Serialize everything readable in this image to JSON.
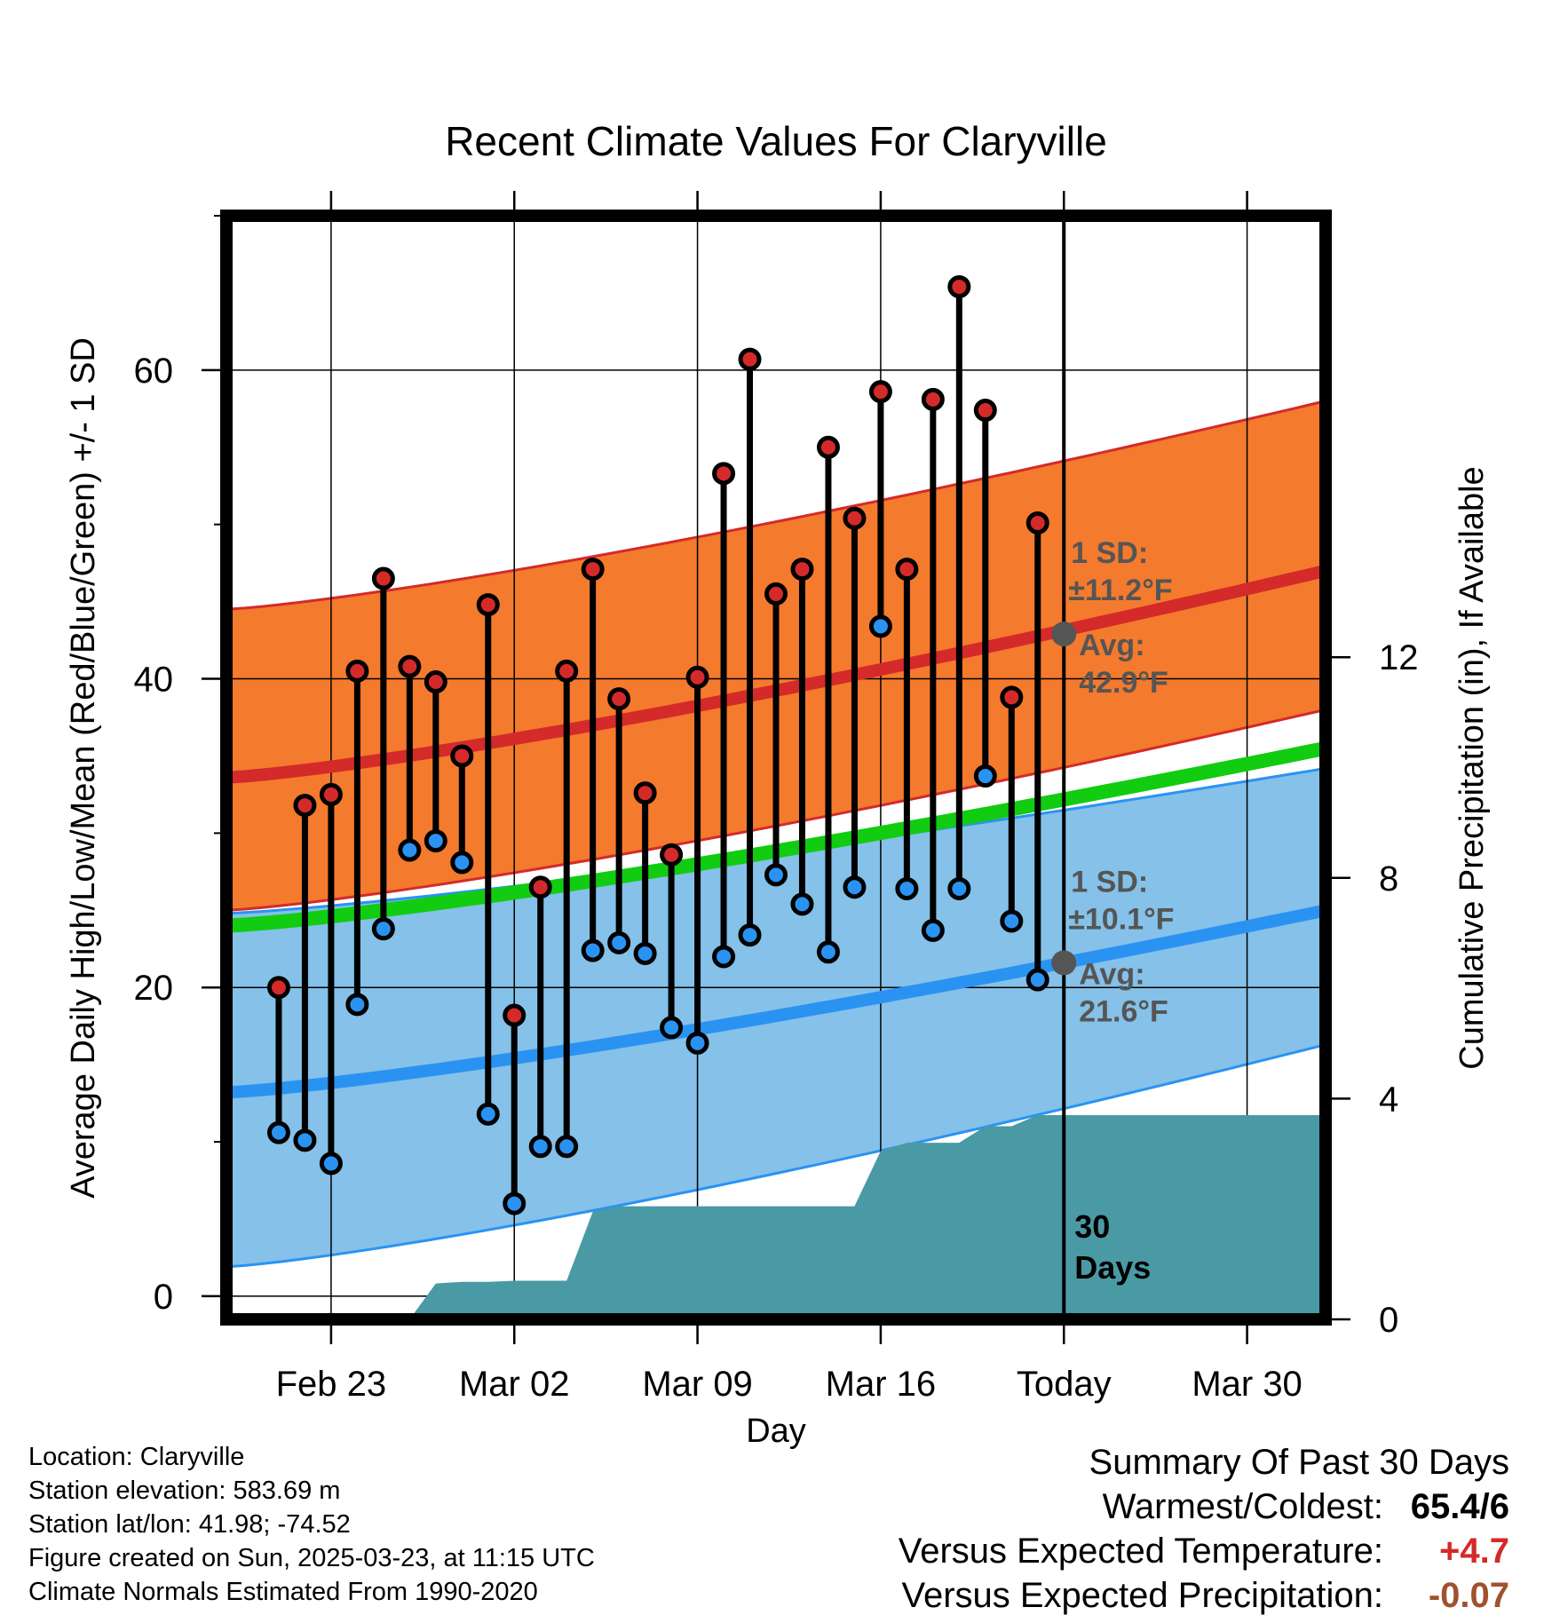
{
  "chart_data": {
    "type": "line",
    "title": "Recent Climate Values For Claryville",
    "xlabel": "Day",
    "ylabel": "Average Daily High/Low/Mean (Red/Blue/Green) +/- 1 SD",
    "y2label": "Cumulative Precipitation (in), If Available",
    "x_tick_labels": [
      "Feb 23",
      "Mar 02",
      "Mar 09",
      "Mar 16",
      "Today",
      "Mar 30"
    ],
    "y_ticks": [
      0,
      20,
      40,
      60
    ],
    "y2_ticks": [
      0,
      4,
      8,
      12
    ],
    "ylim": [
      -1.5,
      70
    ],
    "y2lim": [
      0,
      20
    ],
    "xlim": [
      "2025-02-19",
      "2025-04-02"
    ],
    "today": "2025-03-23",
    "days_marker_label": "30\nDays",
    "grid": true,
    "daily_observations": {
      "dates": [
        "2025-02-21",
        "2025-02-22",
        "2025-02-23",
        "2025-02-24",
        "2025-02-25",
        "2025-02-26",
        "2025-02-27",
        "2025-02-28",
        "2025-03-01",
        "2025-03-02",
        "2025-03-03",
        "2025-03-04",
        "2025-03-05",
        "2025-03-06",
        "2025-03-07",
        "2025-03-08",
        "2025-03-09",
        "2025-03-10",
        "2025-03-11",
        "2025-03-12",
        "2025-03-13",
        "2025-03-14",
        "2025-03-15",
        "2025-03-16",
        "2025-03-17",
        "2025-03-18",
        "2025-03-19",
        "2025-03-20",
        "2025-03-21",
        "2025-03-22"
      ],
      "highs": [
        20.0,
        31.8,
        32.5,
        40.5,
        46.5,
        40.8,
        39.8,
        35.0,
        44.8,
        18.2,
        26.5,
        40.5,
        47.1,
        38.7,
        32.6,
        28.6,
        40.1,
        53.3,
        60.7,
        45.5,
        47.1,
        55.0,
        50.4,
        58.6,
        47.1,
        58.1,
        65.4,
        57.4,
        38.8,
        50.1
      ],
      "lows": [
        10.6,
        10.1,
        8.6,
        18.9,
        23.8,
        28.9,
        29.5,
        28.1,
        11.8,
        6.0,
        9.7,
        9.7,
        22.4,
        22.9,
        22.2,
        17.4,
        16.4,
        22.0,
        23.4,
        27.3,
        25.4,
        22.3,
        26.5,
        43.4,
        26.4,
        23.7,
        26.4,
        33.7,
        24.3,
        20.5
      ],
      "high_color": "#d42a2a",
      "low_color": "#2a93f2"
    },
    "normals": {
      "dates": [
        "2025-02-19",
        "2025-04-02"
      ],
      "avg_high": [
        33.6,
        47.0
      ],
      "avg_high_plus_sd": [
        44.5,
        58.0
      ],
      "avg_high_minus_sd": [
        25.0,
        38.0
      ],
      "avg_mean": [
        24.0,
        35.5
      ],
      "avg_low": [
        13.2,
        25.0
      ],
      "avg_low_plus_sd": [
        24.8,
        34.2
      ],
      "avg_low_minus_sd": [
        1.9,
        16.3
      ],
      "high_band_color": "#f47a2d",
      "high_line_color": "#d42a2a",
      "low_band_color": "#85c1e8",
      "low_line_color": "#2a93f2",
      "mean_line_color": "#11cc11"
    },
    "annotations": {
      "high": {
        "sd_label": "1 SD:",
        "sd_value": "±11.2°F",
        "avg_label": "Avg:",
        "avg_value": "42.9°F",
        "avg": 42.9
      },
      "low": {
        "sd_label": "1 SD:",
        "sd_value": "±10.1°F",
        "avg_label": "Avg:",
        "avg_value": "21.6°F",
        "avg": 21.6
      },
      "color": "#555555"
    },
    "precipitation": {
      "dates": [
        "2025-02-26",
        "2025-02-27",
        "2025-02-28",
        "2025-03-01",
        "2025-03-02",
        "2025-03-03",
        "2025-03-04",
        "2025-03-05",
        "2025-03-06",
        "2025-03-07",
        "2025-03-08",
        "2025-03-09",
        "2025-03-10",
        "2025-03-11",
        "2025-03-12",
        "2025-03-13",
        "2025-03-14",
        "2025-03-15",
        "2025-03-16",
        "2025-03-17",
        "2025-03-18",
        "2025-03-19",
        "2025-03-20",
        "2025-03-21",
        "2025-03-22",
        "2025-03-23",
        "2025-04-02"
      ],
      "cumulative": [
        0.0,
        0.65,
        0.68,
        0.68,
        0.7,
        0.7,
        0.7,
        1.95,
        2.05,
        2.05,
        2.05,
        2.05,
        2.05,
        2.05,
        2.05,
        2.05,
        2.05,
        2.05,
        3.05,
        3.2,
        3.2,
        3.2,
        3.5,
        3.5,
        3.7,
        3.7,
        3.7
      ],
      "color": "#4a9aa5"
    }
  },
  "info": {
    "location": "Location: Claryville",
    "elevation": "Station elevation: 583.69 m",
    "latlon": "Station lat/lon: 41.98; -74.52",
    "created": "Figure created on Sun, 2025-03-23, at 11:15 UTC",
    "normals": "Climate Normals Estimated From 1990-2020"
  },
  "summary": {
    "title": "Summary Of Past 30 Days",
    "warmest_coldest_label": "Warmest/Coldest:",
    "warmest_coldest_value": "65.4/6",
    "temp_label": "Versus Expected Temperature:",
    "temp_value": "+4.7",
    "temp_color": "#d42a2a",
    "precip_label": "Versus Expected Precipitation:",
    "precip_value": "-0.07",
    "precip_color": "#a0522d"
  }
}
